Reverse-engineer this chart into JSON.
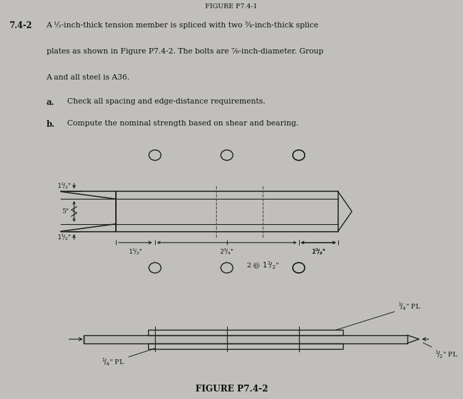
{
  "header": "FIGURE P7.4-1",
  "prob_num": "7.4-2",
  "text_l1": "A ½-inch-thick tension member is spliced with two ¾-inch-thick splice",
  "text_l2": "plates as shown in Figure P7.4-2. The bolts are ⅞-inch-diameter. Group",
  "text_l3": "A and all steel is A36.",
  "part_a": "Check all spacing and edge-distance requirements.",
  "part_b": "Compute the nominal strength based on shear and bearing.",
  "fig_label": "FIGURE P7.4-2",
  "bg_color": "#c0bfbc",
  "line_color": "#1a1a1a",
  "text_color": "#111111"
}
